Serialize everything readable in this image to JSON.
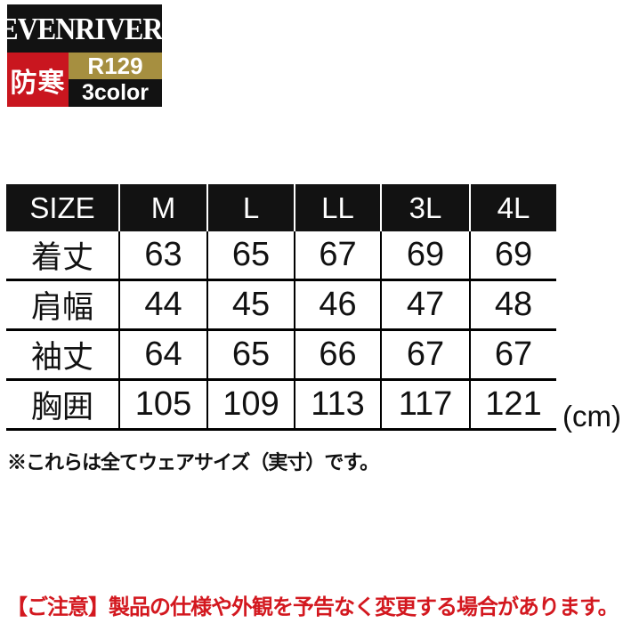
{
  "logo": {
    "brand": "EVENRIVER",
    "registered_mark": "®",
    "warm_badge": "防寒",
    "model": "R129",
    "color_count": "3color"
  },
  "colors": {
    "brand_black": "#121212",
    "warm_red": "#c9161f",
    "model_gold": "#a68f40",
    "caution_red": "#d3181f"
  },
  "size_table": {
    "header": [
      "SIZE",
      "M",
      "L",
      "LL",
      "3L",
      "4L"
    ],
    "rows": [
      {
        "label": "着丈",
        "values": [
          "63",
          "65",
          "67",
          "69",
          "69"
        ]
      },
      {
        "label": "肩幅",
        "values": [
          "44",
          "45",
          "46",
          "47",
          "48"
        ]
      },
      {
        "label": "袖丈",
        "values": [
          "64",
          "65",
          "66",
          "67",
          "67"
        ]
      },
      {
        "label": "胸囲",
        "values": [
          "105",
          "109",
          "113",
          "117",
          "121"
        ]
      }
    ],
    "unit": "(cm)"
  },
  "notes": {
    "size_note": "※これらは全てウェアサイズ（実寸）です。",
    "caution": "【ご注意】製品の仕様や外観を予告なく変更する場合があります。"
  }
}
